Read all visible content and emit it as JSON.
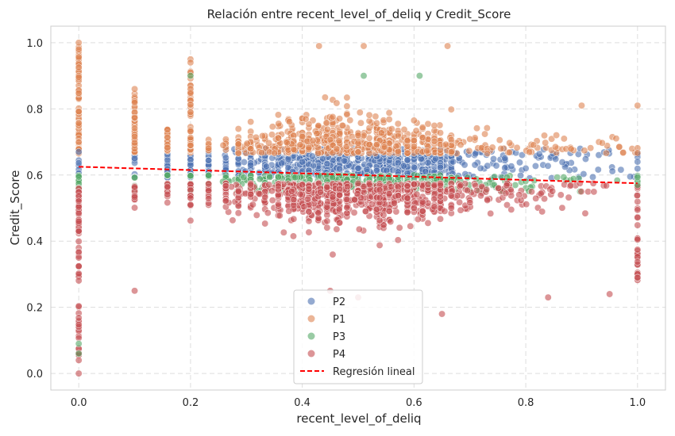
{
  "chart_data": {
    "type": "scatter",
    "title": "Relación entre recent_level_of_deliq y Credit_Score",
    "xlabel": "recent_level_of_deliq",
    "ylabel": "Credit_Score",
    "xlim": [
      -0.05,
      1.05
    ],
    "ylim": [
      -0.05,
      1.05
    ],
    "x_ticks": [
      0.0,
      0.2,
      0.4,
      0.6,
      0.8,
      1.0
    ],
    "y_ticks": [
      0.0,
      0.2,
      0.4,
      0.6,
      0.8,
      1.0
    ],
    "x_tick_labels": [
      "0.0",
      "0.2",
      "0.4",
      "0.6",
      "0.8",
      "1.0"
    ],
    "y_tick_labels": [
      "0.0",
      "0.2",
      "0.4",
      "0.6",
      "0.8",
      "1.0"
    ],
    "grid": true,
    "grid_style": "dashed",
    "background": "#ffffff",
    "legend_position": "bottom-center",
    "series": [
      {
        "name": "P2",
        "color": "#4c72b0",
        "y_range": [
          0.59,
          0.68
        ],
        "note_points": [
          [
            0.0,
            0.67
          ],
          [
            0.1,
            0.65
          ],
          [
            0.2,
            0.63
          ],
          [
            0.5,
            0.62
          ],
          [
            0.8,
            0.62
          ],
          [
            1.0,
            0.64
          ]
        ]
      },
      {
        "name": "P1",
        "color": "#dd8452",
        "y_range": [
          0.66,
          1.0
        ],
        "note_points": [
          [
            0.0,
            1.0
          ],
          [
            0.0,
            0.98
          ],
          [
            0.1,
            0.86
          ],
          [
            0.2,
            0.95
          ],
          [
            0.2,
            0.94
          ],
          [
            0.43,
            0.99
          ],
          [
            0.51,
            0.99
          ],
          [
            0.66,
            0.99
          ],
          [
            0.5,
            0.72
          ],
          [
            0.9,
            0.81
          ],
          [
            1.0,
            0.81
          ]
        ]
      },
      {
        "name": "P3",
        "color": "#55a868",
        "y_range": [
          0.55,
          0.6
        ],
        "note_points": [
          [
            0.0,
            0.09
          ],
          [
            0.0,
            0.06
          ],
          [
            0.2,
            0.9
          ],
          [
            0.51,
            0.9
          ],
          [
            0.61,
            0.9
          ],
          [
            1.0,
            0.57
          ]
        ]
      },
      {
        "name": "P4",
        "color": "#c44e52",
        "y_range": [
          0.18,
          0.58
        ],
        "note_points": [
          [
            0.0,
            0.0
          ],
          [
            0.0,
            0.04
          ],
          [
            0.1,
            0.25
          ],
          [
            0.45,
            0.25
          ],
          [
            0.5,
            0.23
          ],
          [
            0.65,
            0.18
          ],
          [
            0.84,
            0.23
          ],
          [
            0.95,
            0.24
          ],
          [
            1.0,
            0.29
          ]
        ]
      }
    ],
    "regression": {
      "name": "Regresión lineal",
      "color": "#ff0000",
      "style": "dashed",
      "x": [
        0.0,
        1.0
      ],
      "y": [
        0.625,
        0.575
      ]
    },
    "x_levels": [
      0.0,
      0.1,
      0.1587,
      0.2,
      0.2323,
      0.2632,
      0.2857,
      0.3077,
      0.3333,
      0.3571,
      0.375,
      0.3846,
      0.4,
      0.4118,
      0.4286,
      0.4444,
      0.4545,
      0.4615,
      0.4667,
      0.48,
      0.5,
      0.52,
      0.5333,
      0.5385,
      0.5455,
      0.5556,
      0.5714,
      0.5882,
      0.6,
      0.6154,
      0.625,
      0.6364,
      0.6471,
      0.6667
    ]
  }
}
